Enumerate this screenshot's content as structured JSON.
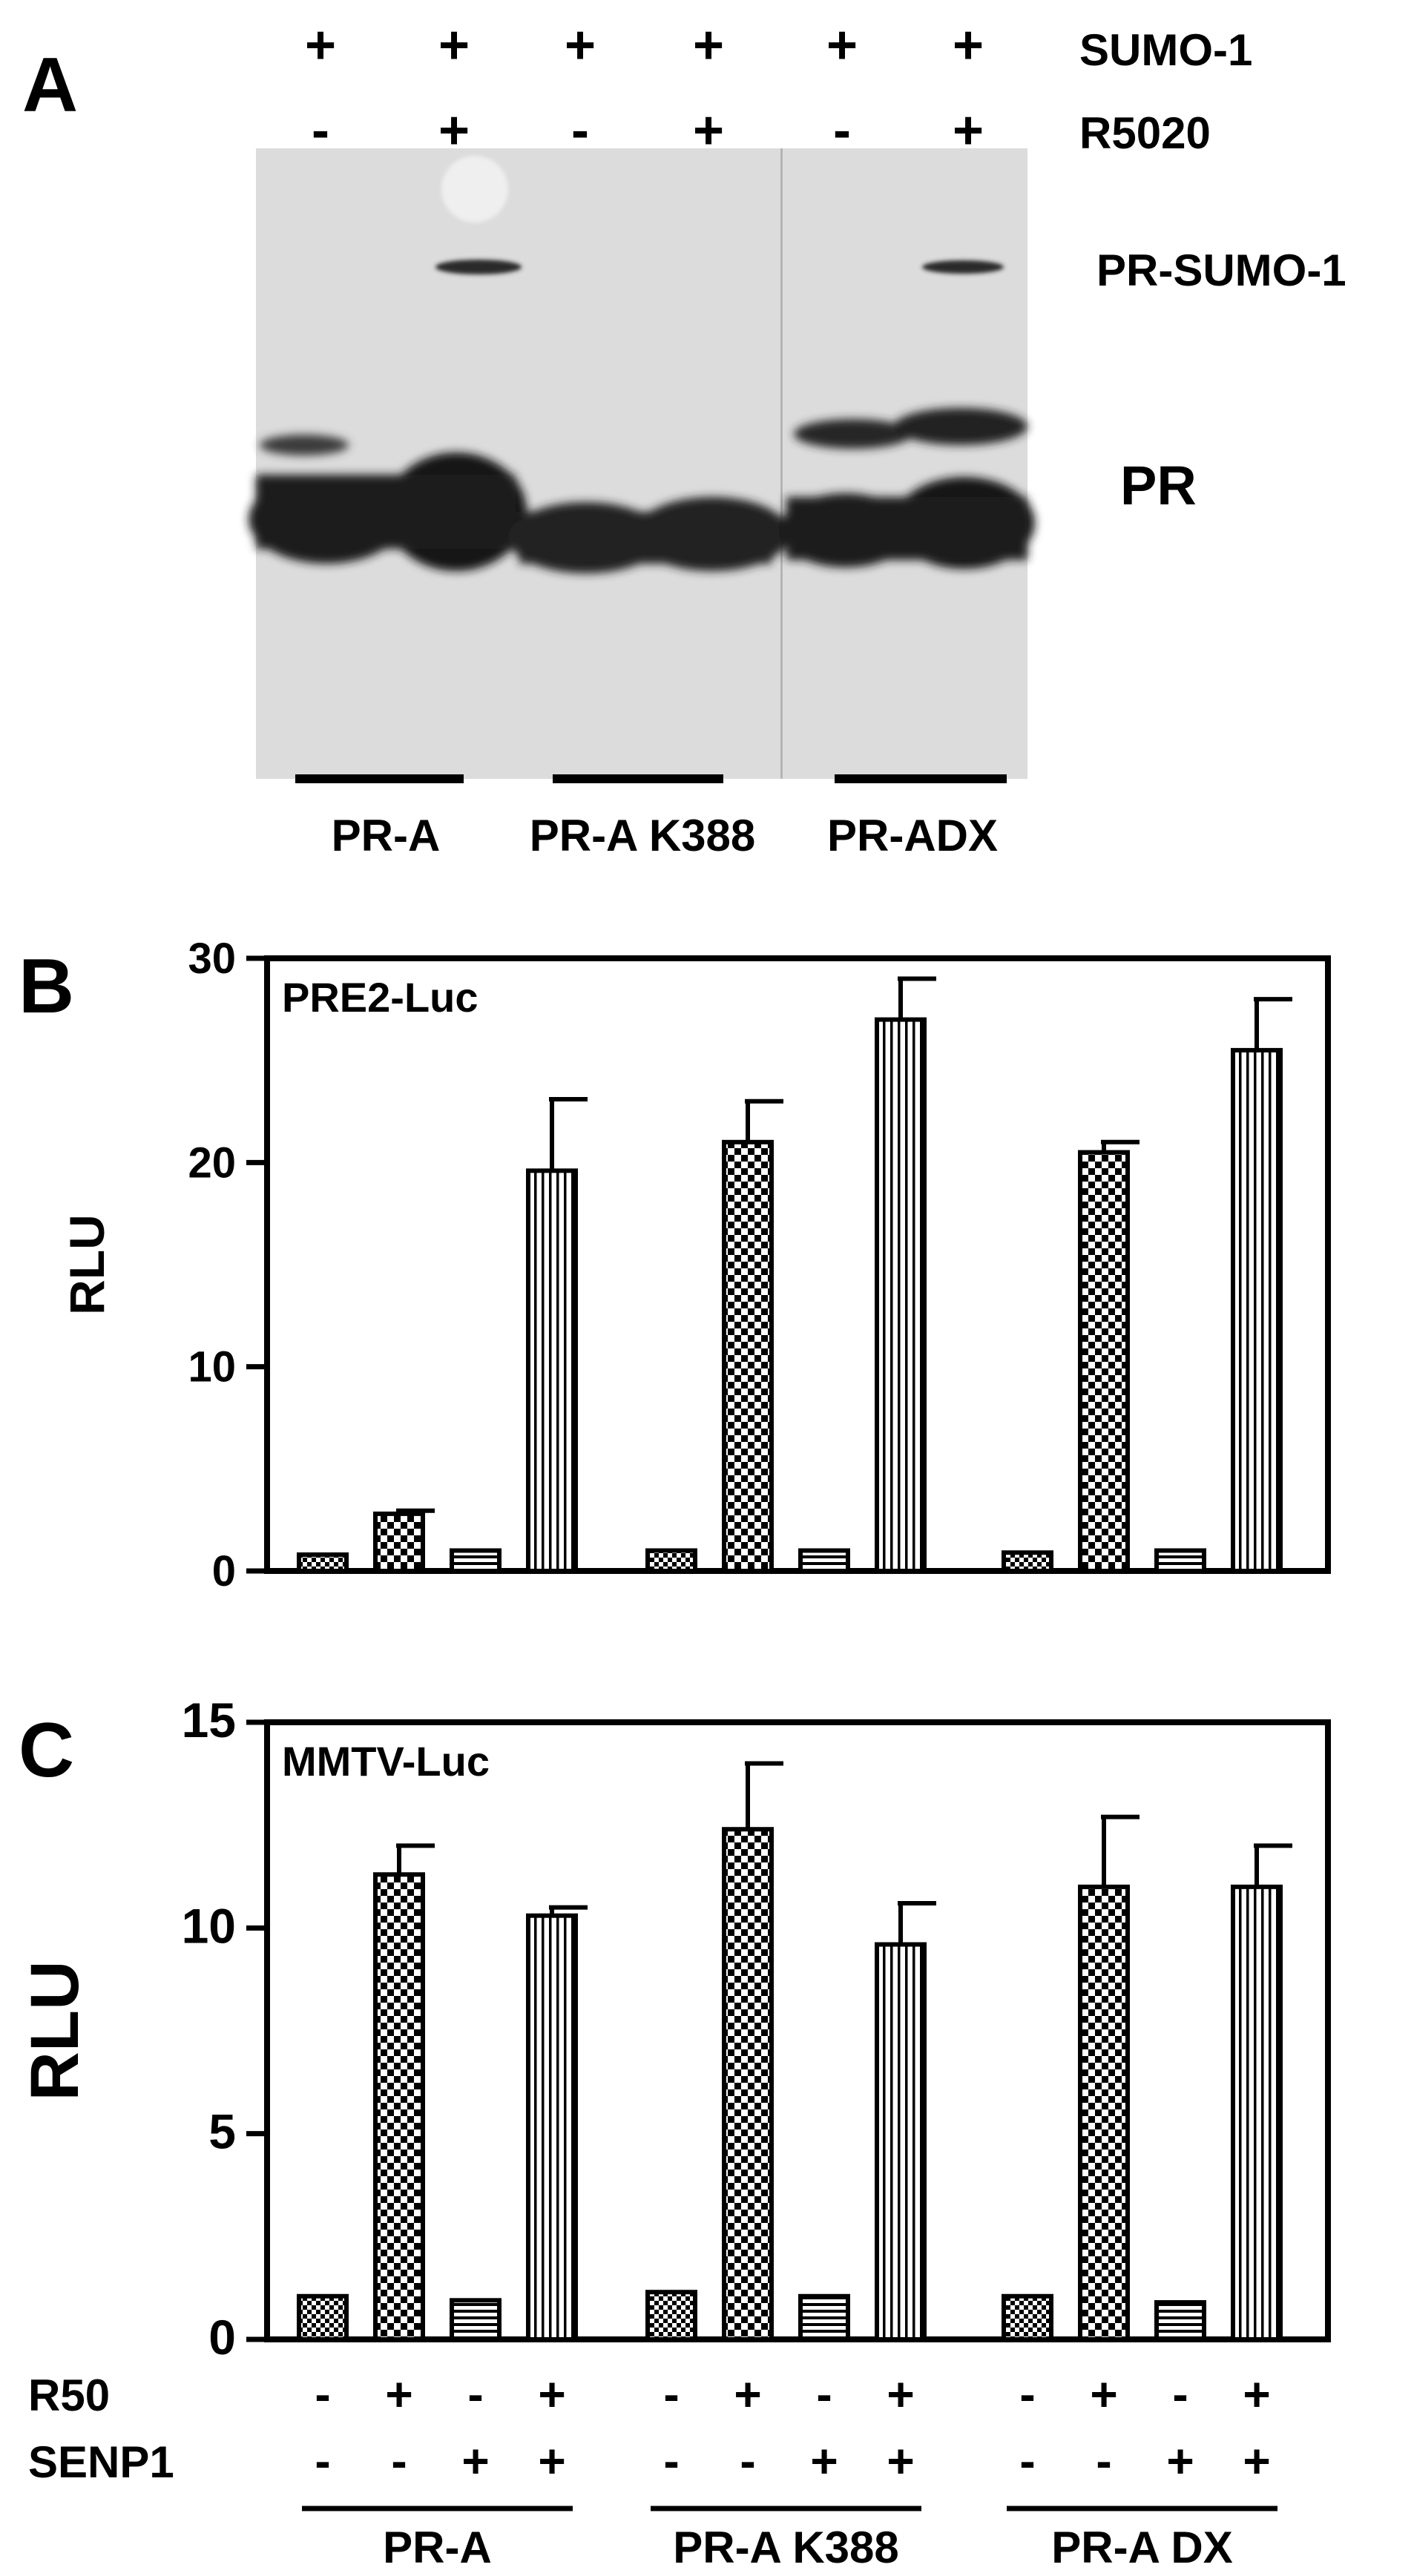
{
  "panel_a": {
    "letter": "A",
    "row_labels": [
      "SUMO-1",
      "R5020"
    ],
    "sumo_signs": [
      "+",
      "+",
      "+",
      "+",
      "+",
      "+"
    ],
    "r5020_signs": [
      "-",
      "+",
      "-",
      "+",
      "-",
      "+"
    ],
    "band_labels": [
      "PR-SUMO-1",
      "PR"
    ],
    "groups": [
      "PR-A",
      "PR-A K388",
      "PR-ADX"
    ]
  },
  "chart_data": [
    {
      "type": "bar",
      "panel": "B",
      "title": "PRE2-Luc",
      "xlabel": "",
      "ylabel": "RLU",
      "ylim": [
        0,
        30
      ],
      "yticks": [
        0,
        10,
        20,
        30
      ],
      "grid": false,
      "groups": [
        "PR-A",
        "PR-A K388",
        "PR-A DX"
      ],
      "conditions": [
        {
          "R50": "-",
          "SENP1": "-",
          "pattern": "fine-check"
        },
        {
          "R50": "+",
          "SENP1": "-",
          "pattern": "check"
        },
        {
          "R50": "-",
          "SENP1": "+",
          "pattern": "horizontal-stripes"
        },
        {
          "R50": "+",
          "SENP1": "+",
          "pattern": "vertical-stripes"
        }
      ],
      "values": [
        [
          0.8,
          2.8,
          1.0,
          19.6
        ],
        [
          1.0,
          21.0,
          1.0,
          27.0
        ],
        [
          0.9,
          20.5,
          1.0,
          25.5
        ]
      ],
      "errors": [
        [
          0.1,
          0.15,
          0.1,
          3.5
        ],
        [
          0.1,
          2.0,
          0.1,
          2.0
        ],
        [
          0.1,
          0.5,
          0.1,
          2.5
        ]
      ]
    },
    {
      "type": "bar",
      "panel": "C",
      "title": "MMTV-Luc",
      "xlabel": "",
      "ylabel": "RLU",
      "ylim": [
        0,
        15
      ],
      "yticks": [
        0,
        5,
        10,
        15
      ],
      "grid": false,
      "groups": [
        "PR-A",
        "PR-A K388",
        "PR-A DX"
      ],
      "conditions": [
        {
          "R50": "-",
          "SENP1": "-",
          "pattern": "fine-check"
        },
        {
          "R50": "+",
          "SENP1": "-",
          "pattern": "check"
        },
        {
          "R50": "-",
          "SENP1": "+",
          "pattern": "horizontal-stripes"
        },
        {
          "R50": "+",
          "SENP1": "+",
          "pattern": "vertical-stripes"
        }
      ],
      "values": [
        [
          1.05,
          11.3,
          0.95,
          10.3
        ],
        [
          1.15,
          12.4,
          1.05,
          9.6
        ],
        [
          1.05,
          11.0,
          0.9,
          11.0
        ]
      ],
      "errors": [
        [
          0.05,
          0.7,
          0.05,
          0.2
        ],
        [
          0.05,
          1.6,
          0.05,
          1.0
        ],
        [
          0.05,
          1.7,
          0.05,
          1.0
        ]
      ],
      "row_labels": [
        "R50",
        "SENP1"
      ]
    }
  ],
  "colors": {
    "ink": "#000000",
    "background": "#ffffff",
    "blot_bg": "#e4e4e4",
    "band": "#1c1c1c"
  }
}
